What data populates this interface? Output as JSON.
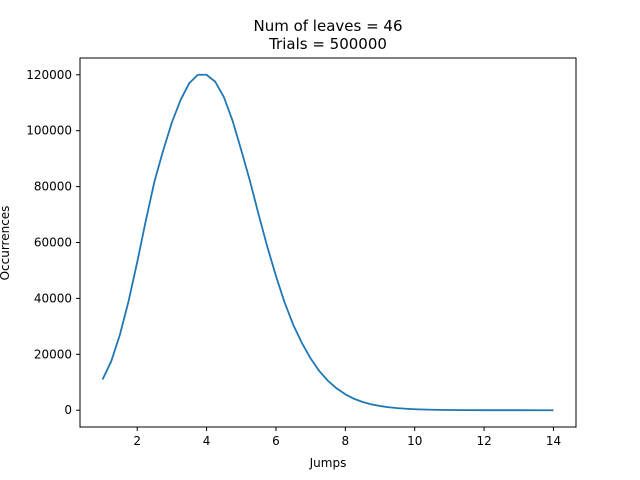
{
  "chart_data": {
    "type": "line",
    "title_line1": "Num of leaves = 46",
    "title_line2": "Trials = 500000",
    "xlabel": "Jumps",
    "ylabel": "Occurrences",
    "xlim": [
      0.35,
      14.65
    ],
    "ylim": [
      -6000,
      126000
    ],
    "xticks": [
      2,
      4,
      6,
      8,
      10,
      12,
      14
    ],
    "yticks": [
      0,
      20000,
      40000,
      60000,
      80000,
      100000,
      120000
    ],
    "grid": false,
    "line_color": "#1f77b4",
    "series": [
      {
        "x": [
          1.0,
          1.25,
          1.5,
          1.75,
          2.0,
          2.25,
          2.5,
          2.75,
          3.0,
          3.25,
          3.5,
          3.75,
          4.0,
          4.25,
          4.5,
          4.75,
          5.0,
          5.25,
          5.5,
          5.75,
          6.0,
          6.25,
          6.5,
          6.75,
          7.0,
          7.25,
          7.5,
          7.75,
          8.0,
          8.25,
          8.5,
          8.75,
          9.0,
          9.25,
          9.5,
          9.75,
          10.0,
          10.25,
          10.5,
          10.75,
          11.0,
          11.5,
          12.0,
          12.5,
          13.0,
          13.5,
          14.0
        ],
        "y": [
          11000,
          17500,
          27000,
          39000,
          53000,
          68000,
          82000,
          93000,
          103000,
          111000,
          117000,
          120000,
          120000,
          117500,
          112000,
          103500,
          93000,
          82000,
          70000,
          58500,
          48000,
          38500,
          30500,
          24000,
          18500,
          14000,
          10500,
          7800,
          5700,
          4100,
          2950,
          2100,
          1500,
          1050,
          740,
          520,
          360,
          250,
          175,
          120,
          85,
          45,
          22,
          11,
          6,
          3,
          1
        ]
      }
    ]
  }
}
